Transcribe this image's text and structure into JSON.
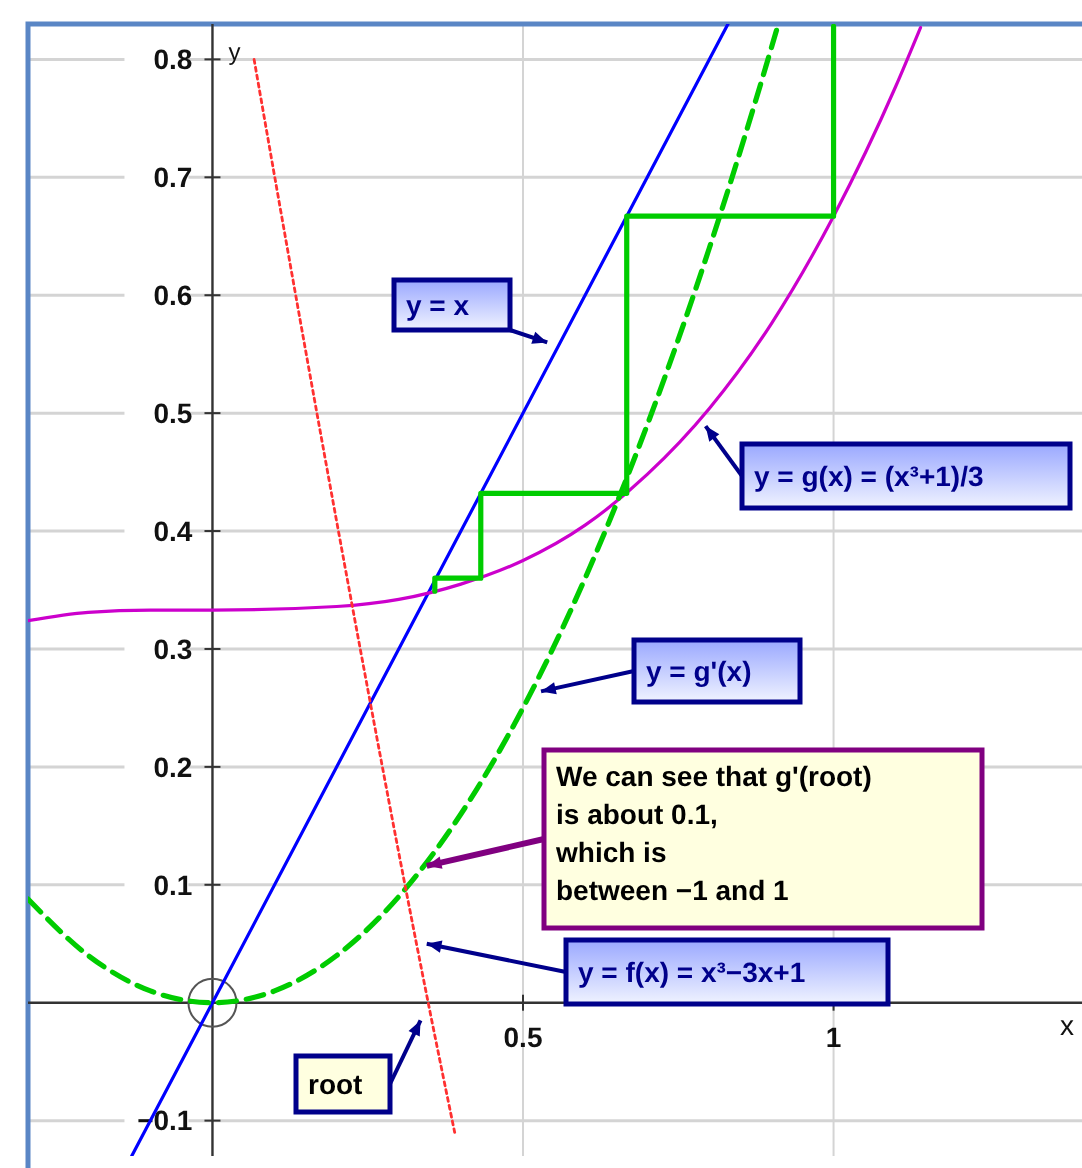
{
  "chart_data": {
    "type": "line",
    "xlabel": "x",
    "ylabel": "y",
    "xlim": [
      -0.297,
      1.4
    ],
    "ylim": [
      -0.13,
      0.83
    ],
    "xticks": [
      0.5,
      1
    ],
    "yticks": [
      {
        "value": -0.1,
        "label": "−0.1"
      },
      0.1,
      0.2,
      0.3,
      0.4,
      0.5,
      0.6,
      0.7,
      0.8
    ],
    "grid": true,
    "marker": "none",
    "series": [
      {
        "color": "#0000ff",
        "line_style": "solid",
        "x": [
          -0.13,
          0.83
        ],
        "values": [
          -0.13,
          0.83
        ]
      },
      {
        "color": "#cc00cc",
        "line_style": "solid",
        "x": [
          -0.297,
          -0.2,
          -0.1,
          0,
          0.2,
          0.3,
          0.4,
          0.5,
          0.6,
          0.7,
          0.8,
          0.9,
          1.0,
          1.1,
          1.14
        ],
        "values": [
          0.324,
          0.331,
          0.333,
          0.333,
          0.336,
          0.342,
          0.355,
          0.375,
          0.405,
          0.448,
          0.504,
          0.576,
          0.667,
          0.777,
          0.827
        ]
      },
      {
        "color": "#00cc00",
        "line_style": "dashed",
        "x": [
          -0.297,
          -0.2,
          -0.1,
          0,
          0.1,
          0.2,
          0.3,
          0.4,
          0.5,
          0.6,
          0.7,
          0.8,
          0.9,
          0.91
        ],
        "values": [
          0.088,
          0.04,
          0.01,
          0,
          0.01,
          0.04,
          0.09,
          0.16,
          0.25,
          0.36,
          0.49,
          0.64,
          0.81,
          0.828
        ]
      },
      {
        "color": "#ff3030",
        "line_style": "dotted",
        "x": [
          0.067,
          0.1,
          0.15,
          0.2,
          0.25,
          0.3,
          0.35,
          0.39
        ],
        "values": [
          0.8,
          0.701,
          0.553,
          0.408,
          0.266,
          0.127,
          -0.007,
          -0.11
        ]
      },
      {
        "color": "#00cc00",
        "line_style": "solid",
        "x": [
          1,
          1,
          0.667,
          0.667,
          0.432,
          0.432,
          0.358,
          0.358
        ],
        "values": [
          0.828,
          0.667,
          0.667,
          0.432,
          0.432,
          0.36,
          0.36,
          0.349
        ]
      }
    ],
    "annotations": [
      {
        "text": "y = x",
        "x": 0.539,
        "y": 0.56
      },
      {
        "text": "y = g(x) = (x³+1)/3",
        "x": 0.794,
        "y": 0.489
      },
      {
        "text": "y = g'(x)",
        "x": 0.529,
        "y": 0.264
      },
      {
        "text": "We can see that g'(root)\nis about 0.1,\nwhich is\nbetween −1 and 1",
        "x": 0.345,
        "y": 0.116
      },
      {
        "text": "y = f(x) = x³−3x+1",
        "x": 0.345,
        "y": 0.05
      },
      {
        "text": "root",
        "x": 0.335,
        "y": -0.015
      }
    ]
  }
}
